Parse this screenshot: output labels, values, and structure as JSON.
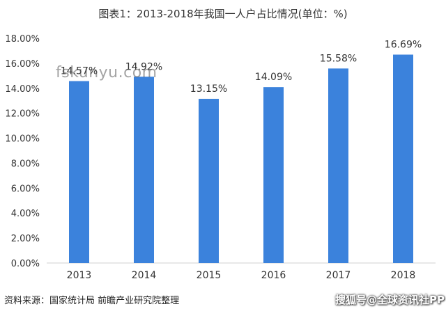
{
  "chart_data": {
    "type": "bar",
    "title": "图表1：2013-2018年我国一人户占比情况(单位：%)",
    "categories": [
      "2013",
      "2014",
      "2015",
      "2016",
      "2017",
      "2018"
    ],
    "values": [
      14.57,
      14.92,
      13.15,
      14.09,
      15.58,
      16.69
    ],
    "data_labels": [
      "14.57%",
      "14.92%",
      "13.15%",
      "14.09%",
      "15.58%",
      "16.69%"
    ],
    "ylim": [
      0,
      18
    ],
    "yticks": [
      "0.00%",
      "2.00%",
      "4.00%",
      "6.00%",
      "8.00%",
      "10.00%",
      "12.00%",
      "14.00%",
      "16.00%",
      "18.00%"
    ],
    "xlabel": "",
    "ylabel": "",
    "bar_color": "#3b82dc",
    "grid": false
  },
  "footer": {
    "source": "资料来源：国家统计局 前瞻产业研究院整理",
    "watermark": "搜狐号@全球资讯社PP"
  },
  "site_watermark": "fskunyu.com"
}
